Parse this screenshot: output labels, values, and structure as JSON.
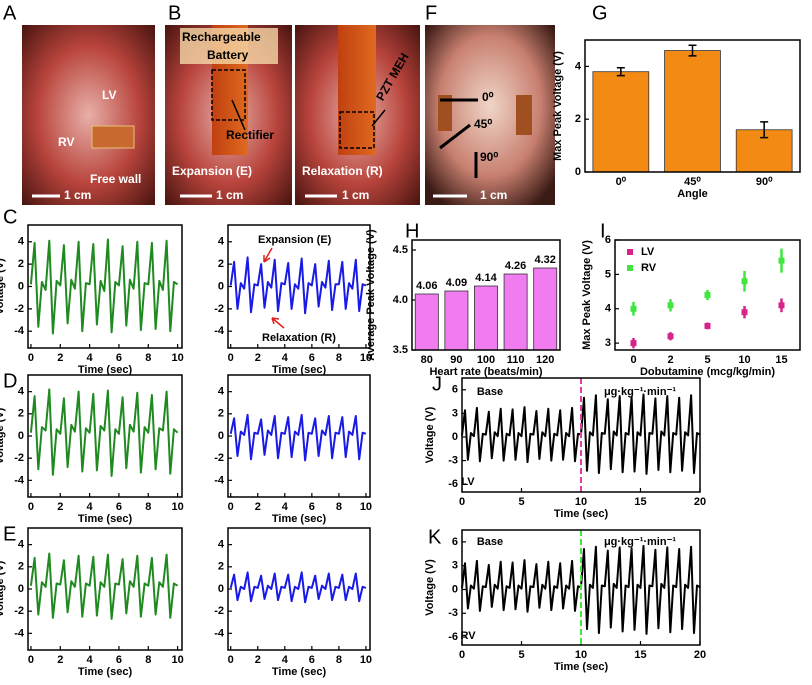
{
  "panel_labels": [
    "A",
    "B",
    "C",
    "D",
    "E",
    "F",
    "G",
    "H",
    "I",
    "J",
    "K"
  ],
  "photo_texts": {
    "A": [
      "LV",
      "RV",
      "Free wall",
      "1 cm"
    ],
    "B": [
      "Rechargeable",
      "Battery",
      "Rectifier",
      "Expansion (E)",
      "1 cm",
      "PZT MEH",
      "Relaxation (R)",
      "1 cm"
    ],
    "F": [
      "0⁰",
      "45⁰",
      "90⁰",
      "1 cm"
    ]
  },
  "chart_data": [
    {
      "type": "line",
      "xlabel": "Time (sec)",
      "ylabel": "Voltage (V)",
      "x": [
        0,
        0.25,
        0.5,
        0.75,
        1,
        1.25,
        1.5,
        1.75,
        2,
        2.25,
        2.5,
        2.75,
        3,
        3.25,
        3.5,
        3.75,
        4,
        4.25,
        4.5,
        4.75,
        5,
        5.25,
        5.5,
        5.75,
        6,
        6.25,
        6.5,
        6.75,
        7,
        7.25,
        7.5,
        7.75,
        8,
        8.25,
        8.5,
        8.75,
        9,
        9.25,
        9.5,
        9.75,
        10
      ],
      "series": [
        {
          "color": "#1f8a1f",
          "values": [
            0.2,
            3.9,
            -3.6,
            0.4,
            -0.3,
            4.1,
            -4.2,
            0.5,
            0.1,
            3.7,
            -3.3,
            0.6,
            -0.2,
            4.0,
            -4.0,
            0.3,
            0.2,
            3.8,
            -3.4,
            0.5,
            -0.4,
            4.2,
            -4.1,
            0.4,
            0.1,
            3.6,
            -3.5,
            0.6,
            -0.2,
            4.0,
            -3.9,
            0.3,
            0.2,
            3.9,
            -3.8,
            0.5,
            -0.3,
            4.1,
            -4.0,
            0.4,
            0.2
          ]
        }
      ],
      "xlim": [
        -0.2,
        10.3
      ],
      "ylim": [
        -5.5,
        5.5
      ],
      "xticks": [
        0,
        2,
        4,
        6,
        8,
        10
      ],
      "yticks": [
        -4,
        -2,
        0,
        2,
        4
      ]
    },
    {
      "type": "line",
      "xlabel": "Time (sec)",
      "annotations": [
        "Expansion (E)",
        "Relaxation (R)"
      ],
      "annotation_color": "#e02020",
      "x": [
        0,
        0.25,
        0.5,
        0.75,
        1,
        1.25,
        1.5,
        1.75,
        2,
        2.25,
        2.5,
        2.75,
        3,
        3.25,
        3.5,
        3.75,
        4,
        4.25,
        4.5,
        4.75,
        5,
        5.25,
        5.5,
        5.75,
        6,
        6.25,
        6.5,
        6.75,
        7,
        7.25,
        7.5,
        7.75,
        8,
        8.25,
        8.5,
        8.75,
        9,
        9.25,
        9.5,
        9.75,
        10
      ],
      "series": [
        {
          "color": "#1a1ae6",
          "values": [
            0.1,
            2.2,
            -2.0,
            0.3,
            -0.2,
            2.6,
            -2.3,
            0.2,
            0.1,
            2.0,
            -1.9,
            0.4,
            -0.1,
            2.4,
            -2.2,
            0.3,
            0.2,
            2.1,
            -2.0,
            0.2,
            -0.2,
            2.5,
            -2.4,
            0.3,
            0.1,
            2.0,
            -1.8,
            0.4,
            -0.1,
            2.3,
            -2.1,
            0.2,
            0.2,
            2.2,
            -2.0,
            0.3,
            -0.2,
            2.4,
            -2.2,
            0.2,
            0.1
          ]
        }
      ],
      "xlim": [
        -0.2,
        10.3
      ],
      "ylim": [
        -5.5,
        5.5
      ],
      "xticks": [
        0,
        2,
        4,
        6,
        8,
        10
      ],
      "yticks": [
        -4,
        -2,
        0,
        2,
        4
      ]
    },
    {
      "type": "line",
      "xlabel": "Time (sec)",
      "ylabel": "Voltage (V)",
      "x": [
        0,
        0.25,
        0.5,
        0.75,
        1,
        1.25,
        1.5,
        1.75,
        2,
        2.25,
        2.5,
        2.75,
        3,
        3.25,
        3.5,
        3.75,
        4,
        4.25,
        4.5,
        4.75,
        5,
        5.25,
        5.5,
        5.75,
        6,
        6.25,
        6.5,
        6.75,
        7,
        7.25,
        7.5,
        7.75,
        8,
        8.25,
        8.5,
        8.75,
        9,
        9.25,
        9.5,
        9.75,
        10
      ],
      "series": [
        {
          "color": "#1f8a1f",
          "values": [
            0.3,
            3.6,
            -3.0,
            0.8,
            0.5,
            4.2,
            -3.5,
            0.6,
            0.2,
            3.4,
            -2.8,
            1.0,
            0.4,
            4.0,
            -3.2,
            0.7,
            0.3,
            3.8,
            -3.1,
            0.9,
            0.5,
            4.1,
            -3.6,
            0.6,
            0.2,
            3.5,
            -2.9,
            1.0,
            0.4,
            3.9,
            -3.3,
            0.8,
            0.3,
            3.7,
            -3.0,
            0.7,
            0.5,
            4.0,
            -3.4,
            0.6,
            0.3
          ]
        }
      ],
      "xlim": [
        -0.2,
        10.3
      ],
      "ylim": [
        -5.5,
        5.5
      ],
      "xticks": [
        0,
        2,
        4,
        6,
        8,
        10
      ],
      "yticks": [
        -4,
        -2,
        0,
        2,
        4
      ]
    },
    {
      "type": "line",
      "xlabel": "Time (sec)",
      "x": [
        0,
        0.25,
        0.5,
        0.75,
        1,
        1.25,
        1.5,
        1.75,
        2,
        2.25,
        2.5,
        2.75,
        3,
        3.25,
        3.5,
        3.75,
        4,
        4.25,
        4.5,
        4.75,
        5,
        5.25,
        5.5,
        5.75,
        6,
        6.25,
        6.5,
        6.75,
        7,
        7.25,
        7.5,
        7.75,
        8,
        8.25,
        8.5,
        8.75,
        9,
        9.25,
        9.5,
        9.75,
        10
      ],
      "series": [
        {
          "color": "#1a1ae6",
          "values": [
            0.2,
            1.6,
            -1.8,
            0.4,
            0.1,
            1.9,
            -2.1,
            0.3,
            0.2,
            1.5,
            -1.7,
            0.5,
            0.1,
            1.8,
            -2.0,
            0.3,
            0.2,
            1.7,
            -1.9,
            0.4,
            0.1,
            1.9,
            -2.2,
            0.3,
            0.2,
            1.6,
            -1.8,
            0.5,
            0.1,
            1.8,
            -2.0,
            0.3,
            0.2,
            1.7,
            -1.9,
            0.4,
            0.1,
            1.8,
            -2.1,
            0.3,
            0.2
          ]
        }
      ],
      "xlim": [
        -0.2,
        10.3
      ],
      "ylim": [
        -5.5,
        5.5
      ],
      "xticks": [
        0,
        2,
        4,
        6,
        8,
        10
      ],
      "yticks": [
        -4,
        -2,
        0,
        2,
        4
      ]
    },
    {
      "type": "line",
      "xlabel": "Time (sec)",
      "ylabel": "Voltage (V)",
      "x": [
        0,
        0.25,
        0.5,
        0.75,
        1,
        1.25,
        1.5,
        1.75,
        2,
        2.25,
        2.5,
        2.75,
        3,
        3.25,
        3.5,
        3.75,
        4,
        4.25,
        4.5,
        4.75,
        5,
        5.25,
        5.5,
        5.75,
        6,
        6.25,
        6.5,
        6.75,
        7,
        7.25,
        7.5,
        7.75,
        8,
        8.25,
        8.5,
        8.75,
        9,
        9.25,
        9.5,
        9.75,
        10
      ],
      "series": [
        {
          "color": "#1f8a1f",
          "values": [
            0.3,
            2.8,
            -2.3,
            0.6,
            0.2,
            3.2,
            -2.6,
            0.5,
            0.4,
            2.6,
            -2.1,
            0.7,
            0.2,
            3.0,
            -2.5,
            0.5,
            0.3,
            2.9,
            -2.4,
            0.6,
            0.2,
            3.1,
            -2.7,
            0.5,
            0.4,
            2.7,
            -2.2,
            0.7,
            0.2,
            3.0,
            -2.5,
            0.5,
            0.3,
            2.8,
            -2.3,
            0.6,
            0.2,
            3.1,
            -2.6,
            0.5,
            0.3
          ]
        }
      ],
      "xlim": [
        -0.2,
        10.3
      ],
      "ylim": [
        -5.5,
        5.5
      ],
      "xticks": [
        0,
        2,
        4,
        6,
        8,
        10
      ],
      "yticks": [
        -4,
        -2,
        0,
        2,
        4
      ]
    },
    {
      "type": "line",
      "xlabel": "Time (sec)",
      "x": [
        0,
        0.25,
        0.5,
        0.75,
        1,
        1.25,
        1.5,
        1.75,
        2,
        2.25,
        2.5,
        2.75,
        3,
        3.25,
        3.5,
        3.75,
        4,
        4.25,
        4.5,
        4.75,
        5,
        5.25,
        5.5,
        5.75,
        6,
        6.25,
        6.5,
        6.75,
        7,
        7.25,
        7.5,
        7.75,
        8,
        8.25,
        8.5,
        8.75,
        9,
        9.25,
        9.5,
        9.75,
        10
      ],
      "series": [
        {
          "color": "#1a1ae6",
          "values": [
            0.1,
            1.3,
            -1.0,
            0.2,
            0.0,
            1.5,
            -1.1,
            0.2,
            0.1,
            1.2,
            -0.9,
            0.3,
            0.0,
            1.4,
            -1.0,
            0.2,
            0.1,
            1.3,
            -1.1,
            0.2,
            0.0,
            1.5,
            -1.2,
            0.2,
            0.1,
            1.2,
            -0.9,
            0.3,
            0.0,
            1.4,
            -1.0,
            0.2,
            0.1,
            1.3,
            -1.0,
            0.2,
            0.0,
            1.4,
            -1.1,
            0.2,
            0.1
          ]
        }
      ],
      "xlim": [
        -0.2,
        10.3
      ],
      "ylim": [
        -5.5,
        5.5
      ],
      "xticks": [
        0,
        2,
        4,
        6,
        8,
        10
      ],
      "yticks": [
        -4,
        -2,
        0,
        2,
        4
      ]
    },
    {
      "type": "bar",
      "xlabel": "Angle",
      "ylabel": "Max Peak Voltage (V)",
      "categories": [
        "0⁰",
        "45⁰",
        "90⁰"
      ],
      "values": [
        3.8,
        4.6,
        1.6
      ],
      "errors": [
        0.15,
        0.2,
        0.3
      ],
      "color": "#f28a14",
      "ylim": [
        0,
        5
      ],
      "yticks": [
        0,
        2,
        4
      ]
    },
    {
      "type": "bar",
      "xlabel": "Heart rate (beats/min)",
      "ylabel": "Average Peak Voltage (V)",
      "show_values": true,
      "categories": [
        "80",
        "90",
        "100",
        "110",
        "120"
      ],
      "values": [
        4.06,
        4.09,
        4.14,
        4.26,
        4.32
      ],
      "color": "#f07cf0",
      "ylim": [
        3.5,
        4.6
      ],
      "yticks": [
        3.5,
        {
          "value": 4.0,
          "label": "4.0"
        },
        4.5
      ]
    },
    {
      "type": "scatter",
      "xlabel": "Dobutamine (mcg/kg/min)",
      "ylabel": "Max Peak Voltage (V)",
      "legend": "upper left",
      "categories": [
        "0",
        "2",
        "5",
        "10",
        "15"
      ],
      "series": [
        {
          "name": "LV",
          "color": "#d6248a",
          "values": [
            3.0,
            3.2,
            3.5,
            3.9,
            4.1
          ],
          "errors": [
            0.15,
            0.12,
            0.1,
            0.18,
            0.2
          ]
        },
        {
          "name": "RV",
          "color": "#3ee63e",
          "values": [
            4.0,
            4.1,
            4.4,
            4.8,
            5.4
          ],
          "errors": [
            0.2,
            0.18,
            0.15,
            0.3,
            0.35
          ]
        }
      ],
      "ylim": [
        2.8,
        6
      ],
      "yticks": [
        3,
        4,
        5,
        6
      ]
    },
    {
      "type": "line",
      "xlabel": "Time (sec)",
      "ylabel": "Voltage (V)",
      "annotations": [
        "Base",
        "μg·kg⁻¹·min⁻¹",
        "LV"
      ],
      "annotation_color": "#e040a0",
      "marker_x": 10,
      "x": [
        0,
        0.25,
        0.5,
        0.75,
        1,
        1.25,
        1.5,
        1.75,
        2,
        2.25,
        2.5,
        2.75,
        3,
        3.25,
        3.5,
        3.75,
        4,
        4.25,
        4.5,
        4.75,
        5,
        5.25,
        5.5,
        5.75,
        6,
        6.25,
        6.5,
        6.75,
        7,
        7.25,
        7.5,
        7.75,
        8,
        8.25,
        8.5,
        8.75,
        9,
        9.25,
        9.5,
        9.75,
        10,
        10.25,
        10.5,
        10.75,
        11,
        11.25,
        11.5,
        11.75,
        12,
        12.25,
        12.5,
        12.75,
        13,
        13.25,
        13.5,
        13.75,
        14,
        14.25,
        14.5,
        14.75,
        15,
        15.25,
        15.5,
        15.75,
        16,
        16.25,
        16.5,
        16.75,
        17,
        17.25,
        17.5,
        17.75,
        18,
        18.25,
        18.5,
        18.75,
        19,
        19.25,
        19.5,
        19.75,
        20
      ],
      "series": [
        {
          "color": "#000000",
          "values": [
            0.2,
            3.4,
            -2.9,
            0.5,
            0.1,
            3.7,
            -3.1,
            0.4,
            0.3,
            3.2,
            -2.7,
            0.6,
            0.1,
            3.6,
            -3.0,
            0.4,
            0.2,
            3.5,
            -2.9,
            0.5,
            0.1,
            3.8,
            -3.2,
            0.4,
            0.3,
            3.3,
            -2.8,
            0.6,
            0.1,
            3.6,
            -3.0,
            0.4,
            0.2,
            3.4,
            -2.9,
            0.5,
            0.1,
            3.7,
            -3.1,
            0.4,
            0.3,
            5.0,
            -4.3,
            0.6,
            0.2,
            5.3,
            -4.6,
            0.5,
            0.4,
            4.8,
            -4.1,
            0.7,
            0.2,
            5.2,
            -4.5,
            0.5,
            0.3,
            5.1,
            -4.4,
            0.6,
            0.2,
            5.4,
            -4.7,
            0.5,
            0.4,
            4.9,
            -4.2,
            0.7,
            0.2,
            5.2,
            -4.5,
            0.5,
            0.3,
            5.0,
            -4.3,
            0.6,
            0.2,
            5.3,
            -4.6,
            0.5,
            0.3
          ]
        }
      ],
      "xlim": [
        0,
        20
      ],
      "ylim": [
        -7,
        7.5
      ],
      "xticks": [
        0,
        5,
        10,
        15,
        20
      ],
      "yticks": [
        -6,
        -3,
        0,
        3,
        6
      ]
    },
    {
      "type": "line",
      "xlabel": "Time (sec)",
      "ylabel": "Voltage (V)",
      "annotations": [
        "Base",
        "μg·kg⁻¹·min⁻¹",
        "RV"
      ],
      "annotation_color": "#3ee63e",
      "marker_x": 10,
      "x": [
        0,
        0.25,
        0.5,
        0.75,
        1,
        1.25,
        1.5,
        1.75,
        2,
        2.25,
        2.5,
        2.75,
        3,
        3.25,
        3.5,
        3.75,
        4,
        4.25,
        4.5,
        4.75,
        5,
        5.25,
        5.5,
        5.75,
        6,
        6.25,
        6.5,
        6.75,
        7,
        7.25,
        7.5,
        7.75,
        8,
        8.25,
        8.5,
        8.75,
        9,
        9.25,
        9.5,
        9.75,
        10,
        10.25,
        10.5,
        10.75,
        11,
        11.25,
        11.5,
        11.75,
        12,
        12.25,
        12.5,
        12.75,
        13,
        13.25,
        13.5,
        13.75,
        14,
        14.25,
        14.5,
        14.75,
        15,
        15.25,
        15.5,
        15.75,
        16,
        16.25,
        16.5,
        16.75,
        17,
        17.25,
        17.5,
        17.75,
        18,
        18.25,
        18.5,
        18.75,
        19,
        19.25,
        19.5,
        19.75,
        20
      ],
      "series": [
        {
          "color": "#000000",
          "values": [
            0.2,
            3.3,
            -2.4,
            0.5,
            0.1,
            3.6,
            -2.7,
            0.4,
            0.3,
            3.1,
            -2.2,
            0.6,
            0.1,
            3.5,
            -2.6,
            0.4,
            0.2,
            3.4,
            -2.5,
            0.5,
            0.1,
            3.7,
            -2.8,
            0.4,
            0.3,
            3.2,
            -2.3,
            0.6,
            0.1,
            3.5,
            -2.6,
            0.4,
            0.2,
            3.3,
            -2.4,
            0.5,
            0.1,
            3.6,
            -2.7,
            0.4,
            0.3,
            5.1,
            -5.0,
            0.6,
            0.2,
            5.4,
            -5.5,
            0.5,
            0.4,
            4.9,
            -4.8,
            0.7,
            0.2,
            5.3,
            -5.3,
            0.5,
            0.3,
            5.2,
            -5.1,
            0.6,
            0.2,
            5.5,
            -5.6,
            0.5,
            0.4,
            5.0,
            -4.9,
            0.7,
            0.2,
            5.3,
            -5.4,
            0.5,
            0.3,
            5.1,
            -5.0,
            0.6,
            0.2,
            5.4,
            -5.5,
            0.5,
            0.3
          ]
        }
      ],
      "xlim": [
        0,
        20
      ],
      "ylim": [
        -7,
        7.5
      ],
      "xticks": [
        0,
        5,
        10,
        15,
        20
      ],
      "yticks": [
        -6,
        -3,
        0,
        3,
        6
      ]
    }
  ]
}
